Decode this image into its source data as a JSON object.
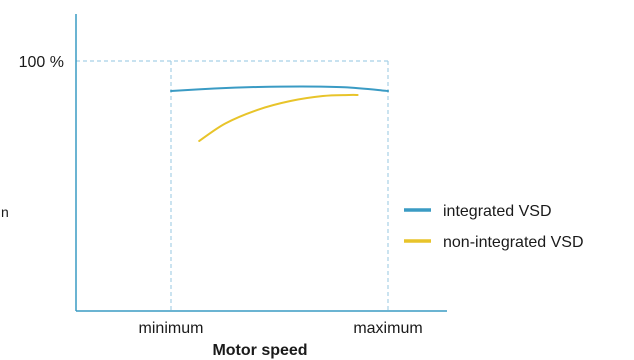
{
  "chart_data": {
    "type": "line",
    "title": "",
    "xlabel": "Motor speed",
    "ylabel": "",
    "x_tick_labels": [
      "minimum",
      "maximum"
    ],
    "y_tick_labels": [
      "100 %"
    ],
    "y_edge_fragment": "n",
    "xlim": [
      0,
      1
    ],
    "ylim": [
      0,
      100
    ],
    "grid": "dashed reference lines at 100 %, minimum and maximum",
    "legend_position": "right",
    "series": [
      {
        "name": "integrated VSD",
        "color": "#3a9bc4",
        "x": [
          0,
          0.2,
          0.4,
          0.6,
          0.8,
          1.0
        ],
        "y": [
          88,
          89,
          89.6,
          89.8,
          89.5,
          88
        ]
      },
      {
        "name": "non-integrated VSD",
        "color": "#e8c42a",
        "x": [
          0.13,
          0.25,
          0.4,
          0.55,
          0.7,
          0.82,
          0.86
        ],
        "y": [
          68,
          75,
          80.5,
          84,
          86,
          86.4,
          86.4
        ]
      }
    ],
    "colors": {
      "axis": "#3a9bc4",
      "gridline": "#a8d0e6",
      "text": "#1a1a1a"
    }
  }
}
